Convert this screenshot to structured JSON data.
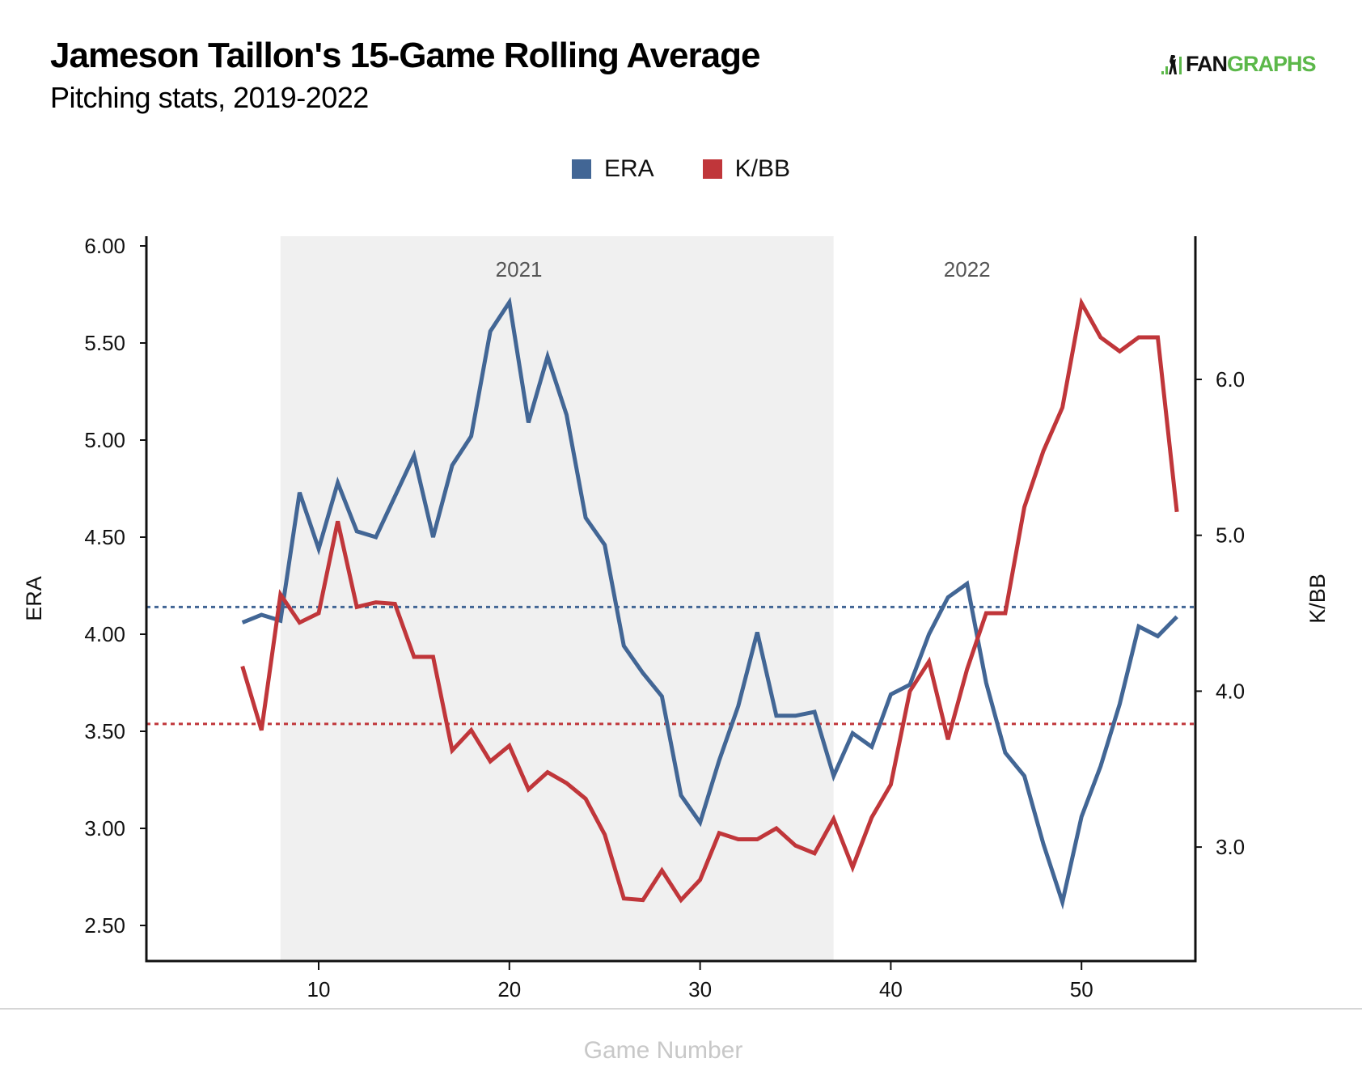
{
  "header": {
    "title": "Jameson Taillon's 15-Game Rolling Average",
    "subtitle": "Pitching stats, 2019-2022",
    "logo_prefix": "FAN",
    "logo_suffix": "GRAPHS",
    "logo_icon": "batter-bars-icon"
  },
  "colors": {
    "era": "#426695",
    "kbb": "#c0363a",
    "shade": "#f0f0f0",
    "logo_green": "#5cb84a"
  },
  "chart_data": {
    "type": "line",
    "title": "Jameson Taillon's 15-Game Rolling Average",
    "subtitle": "Pitching stats, 2019-2022",
    "xlabel": "Game Number",
    "ylabel": "ERA",
    "y2label": "K/BB",
    "legend": {
      "placement": "top-center",
      "entries": [
        "ERA",
        "K/BB"
      ]
    },
    "grid": false,
    "xlim": [
      1,
      56
    ],
    "ylim": [
      2.31,
      6.05
    ],
    "y2lim": [
      2.27,
      6.92
    ],
    "x_ticks": [
      10,
      20,
      30,
      40,
      50
    ],
    "y_ticks": [
      "2.50",
      "3.00",
      "3.50",
      "4.00",
      "4.50",
      "5.00",
      "5.50",
      "6.00"
    ],
    "y2_ticks": [
      "3.0",
      "4.0",
      "5.0",
      "6.0"
    ],
    "x": [
      6,
      7,
      8,
      9,
      10,
      11,
      12,
      13,
      14,
      15,
      16,
      17,
      18,
      19,
      20,
      21,
      22,
      23,
      24,
      25,
      26,
      27,
      28,
      29,
      30,
      31,
      32,
      33,
      34,
      35,
      36,
      37,
      38,
      39,
      40,
      41,
      42,
      43,
      44,
      45,
      46,
      47,
      48,
      49,
      50,
      51,
      52,
      53,
      54,
      55
    ],
    "series": [
      {
        "name": "ERA",
        "axis": "left",
        "color": "#426695",
        "values": [
          4.06,
          4.1,
          4.07,
          4.73,
          4.44,
          4.78,
          4.53,
          4.5,
          4.71,
          4.92,
          4.5,
          4.87,
          5.02,
          5.56,
          5.71,
          5.09,
          5.43,
          5.13,
          4.6,
          4.46,
          3.94,
          3.8,
          3.68,
          3.17,
          3.03,
          3.35,
          3.63,
          4.01,
          3.58,
          3.58,
          3.6,
          3.27,
          3.49,
          3.42,
          3.69,
          3.74,
          4.0,
          4.19,
          4.26,
          3.75,
          3.39,
          3.27,
          2.92,
          2.62,
          3.06,
          3.32,
          3.64,
          4.04,
          3.99,
          4.09
        ]
      },
      {
        "name": "K/BB",
        "axis": "right",
        "color": "#c0363a",
        "values": [
          4.16,
          3.75,
          4.62,
          4.44,
          4.5,
          5.09,
          4.54,
          4.57,
          4.56,
          4.22,
          4.22,
          3.62,
          3.75,
          3.55,
          3.65,
          3.37,
          3.48,
          3.41,
          3.31,
          3.08,
          2.67,
          2.66,
          2.85,
          2.66,
          2.79,
          3.09,
          3.05,
          3.05,
          3.12,
          3.01,
          2.96,
          3.18,
          2.87,
          3.19,
          3.4,
          4.0,
          4.19,
          3.69,
          4.14,
          4.5,
          4.5,
          5.18,
          5.54,
          5.82,
          6.49,
          6.27,
          6.18,
          6.27,
          6.27,
          5.15
        ]
      }
    ],
    "reference_lines": [
      {
        "name": "ERA average",
        "axis": "left",
        "value": 4.14,
        "style": "dotted",
        "color": "#426695"
      },
      {
        "name": "K/BB average",
        "axis": "right",
        "value": 3.79,
        "style": "dotted",
        "color": "#c0363a"
      }
    ],
    "shaded_regions": [
      {
        "label": "2021",
        "x_start": 8,
        "x_end": 37
      }
    ],
    "annotations": [
      {
        "text": "2021",
        "x": 20.5
      },
      {
        "text": "2022",
        "x": 44
      }
    ]
  }
}
